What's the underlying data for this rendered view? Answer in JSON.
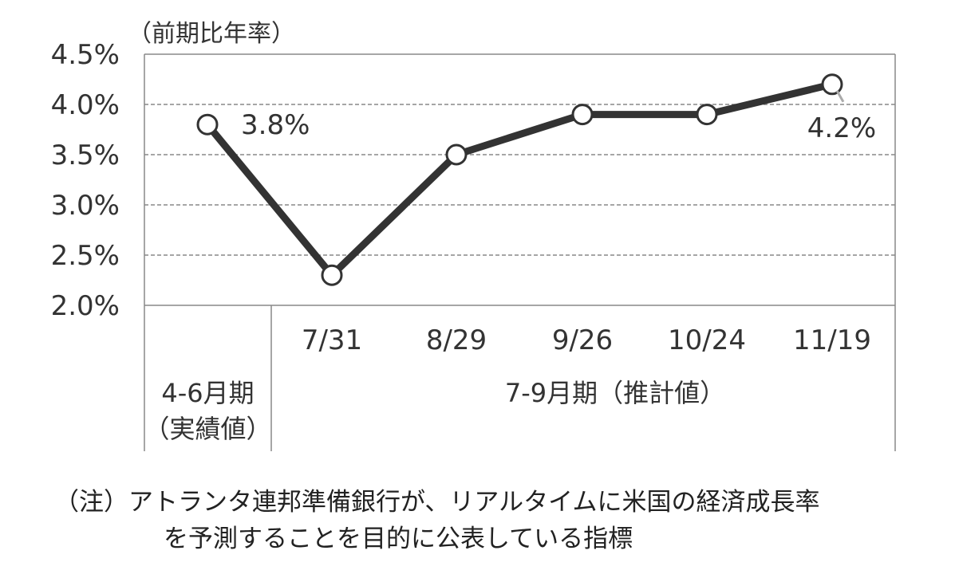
{
  "chart_data": {
    "type": "line",
    "unit_label": "（前期比年率）",
    "categories": [
      "4-6月期",
      "7/31",
      "8/29",
      "9/26",
      "10/24",
      "11/19"
    ],
    "values": [
      3.8,
      2.3,
      3.5,
      3.9,
      3.9,
      4.2
    ],
    "y_ticks": [
      "4.5%",
      "4.0%",
      "3.5%",
      "3.0%",
      "2.5%",
      "2.0%"
    ],
    "ylim": [
      2.0,
      4.5
    ],
    "grid": true,
    "data_labels": [
      {
        "index": 0,
        "text": "3.8%"
      },
      {
        "index": 5,
        "text": "4.2%"
      }
    ],
    "groups": [
      {
        "lines": [
          "4-6月期",
          "（実績値）"
        ]
      },
      {
        "lines": [
          "7-9月期（推計値）"
        ]
      }
    ],
    "colors": {
      "line": "#333333",
      "marker_fill": "#ffffff",
      "grid": "#888888",
      "leader": "#aaaaaa"
    }
  },
  "note": {
    "line1": "（注）アトランタ連邦準備銀行が、リアルタイムに米国の経済成長率",
    "line2": "を予測することを目的に公表している指標"
  }
}
